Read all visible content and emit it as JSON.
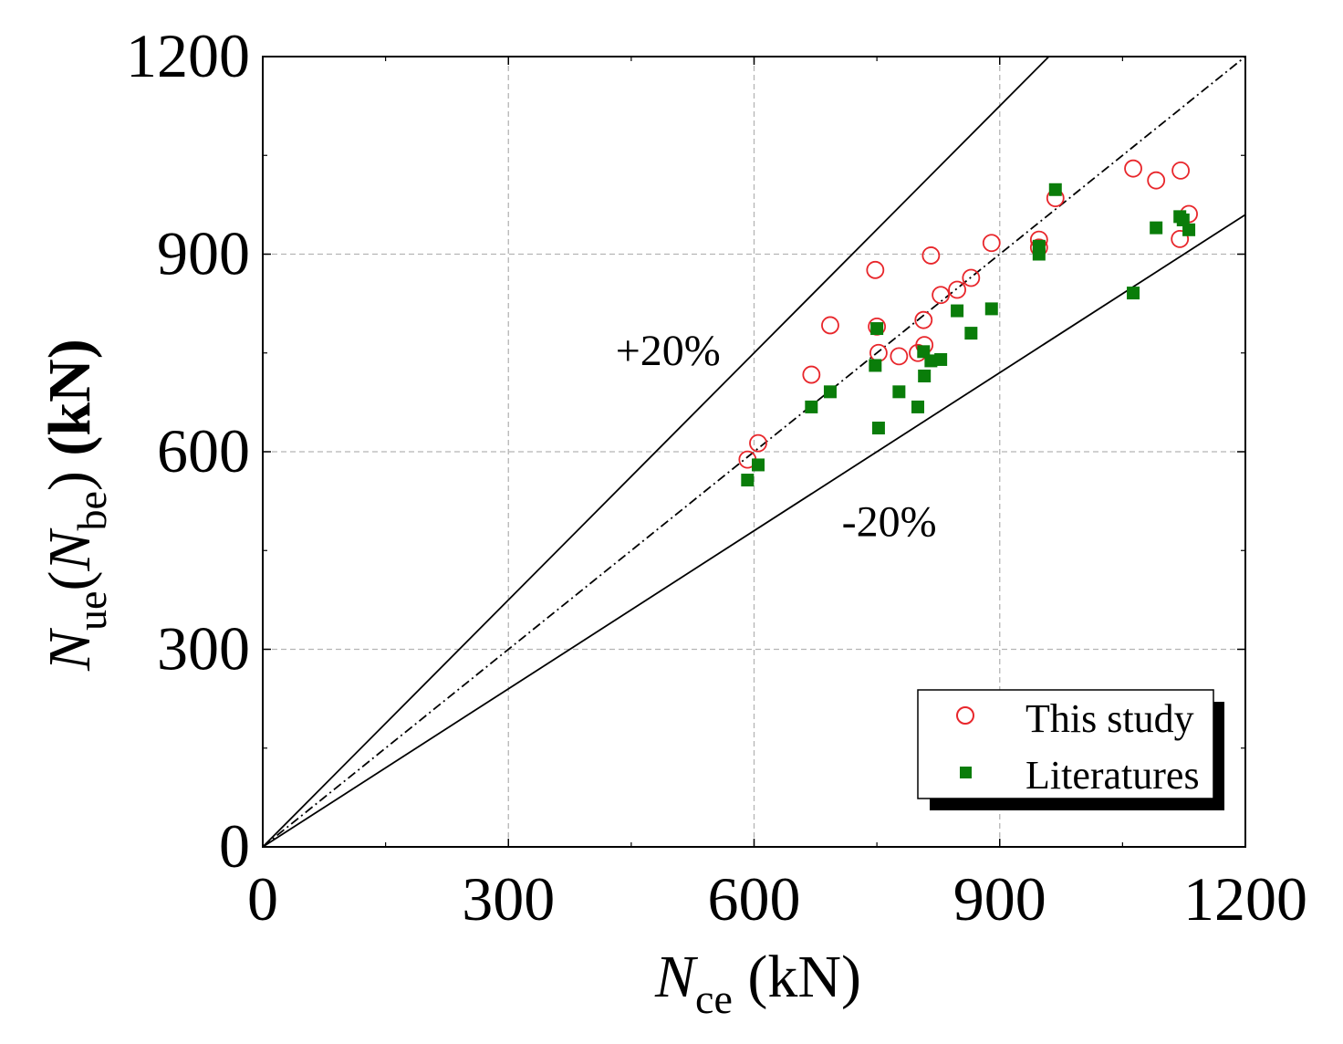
{
  "chart_data": {
    "type": "scatter",
    "title": "",
    "xlabel": {
      "main": "N",
      "sub": "ce",
      "unit": " (kN)"
    },
    "ylabel": {
      "main1": "N",
      "sub1": "ue",
      "paren_open": "(",
      "main2": "N",
      "sub2": "be",
      "paren_close": ")",
      "unit": " (kN)"
    },
    "xlim": [
      0,
      1200
    ],
    "ylim": [
      0,
      1200
    ],
    "xticks": [
      0,
      300,
      600,
      900,
      1200
    ],
    "yticks": [
      0,
      300,
      600,
      900,
      1200
    ],
    "minor_ticks": [
      150,
      450,
      750,
      1050
    ],
    "grid": true,
    "legend_position": "bottom-right",
    "reference_lines": [
      {
        "name": "+20%",
        "label": "+20%",
        "slope": 1.25,
        "style": "solid"
      },
      {
        "name": "equality",
        "label": "",
        "slope": 1.0,
        "style": "dash-dot"
      },
      {
        "name": "-20%",
        "label": "-20%",
        "slope": 0.8,
        "style": "solid"
      }
    ],
    "series": [
      {
        "name": "This study",
        "marker": "open-circle",
        "color": "#e8262b",
        "points": [
          [
            592,
            588
          ],
          [
            605,
            613
          ],
          [
            670,
            717
          ],
          [
            693,
            792
          ],
          [
            748,
            876
          ],
          [
            750,
            790
          ],
          [
            752,
            750
          ],
          [
            777,
            745
          ],
          [
            800,
            750
          ],
          [
            808,
            762
          ],
          [
            807,
            800
          ],
          [
            816,
            898
          ],
          [
            828,
            838
          ],
          [
            848,
            846
          ],
          [
            865,
            864
          ],
          [
            890,
            917
          ],
          [
            948,
            922
          ],
          [
            948,
            910
          ],
          [
            968,
            985
          ],
          [
            1063,
            1030
          ],
          [
            1091,
            1012
          ],
          [
            1121,
            1027
          ],
          [
            1120,
            923
          ],
          [
            1131,
            961
          ]
        ]
      },
      {
        "name": "Literatures",
        "marker": "filled-square",
        "color": "#0a7d0a",
        "points": [
          [
            592,
            557
          ],
          [
            605,
            580
          ],
          [
            670,
            668
          ],
          [
            693,
            691
          ],
          [
            748,
            731
          ],
          [
            750,
            787
          ],
          [
            752,
            636
          ],
          [
            777,
            691
          ],
          [
            800,
            668
          ],
          [
            808,
            715
          ],
          [
            807,
            752
          ],
          [
            816,
            738
          ],
          [
            828,
            740
          ],
          [
            848,
            814
          ],
          [
            865,
            780
          ],
          [
            890,
            817
          ],
          [
            948,
            900
          ],
          [
            948,
            912
          ],
          [
            968,
            998
          ],
          [
            1063,
            841
          ],
          [
            1091,
            940
          ],
          [
            1120,
            957
          ],
          [
            1124,
            952
          ],
          [
            1131,
            937
          ]
        ]
      }
    ]
  }
}
